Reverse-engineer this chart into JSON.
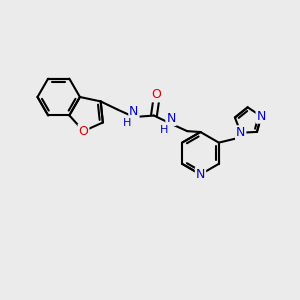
{
  "bg_color": "#ebebeb",
  "bond_color": "#000000",
  "bond_width": 1.5,
  "atom_colors": {
    "O": "#dd0000",
    "N": "#0000cc"
  },
  "font_size": 9
}
